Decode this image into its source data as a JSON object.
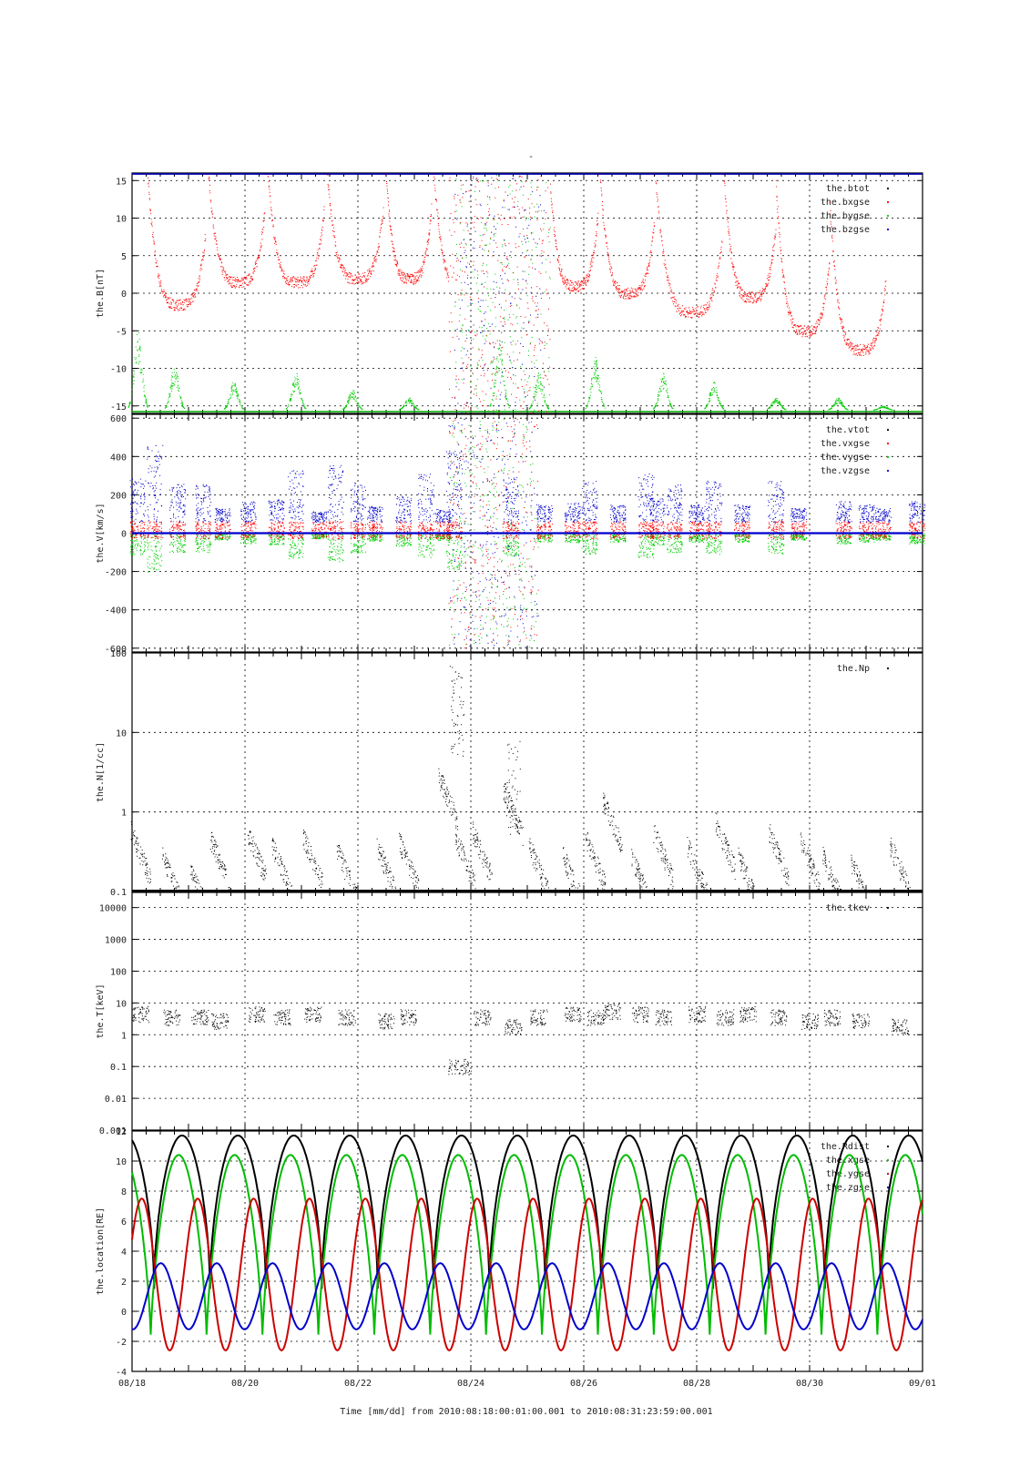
{
  "figure": {
    "top_mark": "-",
    "xlabel": "Time [mm/dd]  from 2010:08:18:00:01:00.001  to  2010:08:31:23:59:00.001"
  },
  "chart_data": [
    {
      "type": "scatter",
      "ylabel": "the.B[nT]",
      "ylim": [
        -16,
        16
      ],
      "yticks": [
        -15,
        -10,
        -5,
        0,
        5,
        10,
        15
      ],
      "yticklabels": [
        "-15",
        "-10",
        "-5",
        "0",
        "5",
        "10",
        "15"
      ],
      "x_range": [
        "08/18",
        "09/01"
      ],
      "grid": true,
      "legend": "top-right",
      "series": [
        {
          "name": "the.btot",
          "color": "#000000",
          "pattern": "constant",
          "y": [
            16
          ]
        },
        {
          "name": "the.bxgse",
          "color": "#ff0000",
          "pattern": "cusps",
          "cusp_days": [
            0.25,
            1.3,
            2.35,
            3.4,
            4.45,
            5.3,
            6.3,
            7.35,
            8.25,
            9.25,
            10.45,
            11.4,
            12.35,
            13.35
          ],
          "minima": [
            -1.5,
            1.5,
            1.5,
            2.0,
            2.0,
            1.0,
            0.5,
            1.0,
            0.0,
            -2.5,
            -0.5,
            -5.0,
            -7.5,
            1.0
          ]
        },
        {
          "name": "the.bygse",
          "color": "#00cc00",
          "pattern": "bumps",
          "base": -15.5,
          "centers": [
            0.1,
            0.75,
            1.8,
            2.9,
            3.9,
            4.9,
            6.5,
            7.2,
            8.2,
            9.4,
            10.3,
            11.4,
            12.5,
            13.3
          ],
          "peaks": [
            -6,
            -10,
            -12,
            -11,
            -13,
            -14,
            -7,
            -11,
            -9,
            -11,
            -12,
            -14,
            -14,
            -15
          ]
        },
        {
          "name": "the.bzgse",
          "color": "#0000cc",
          "pattern": "constant",
          "y": [
            16
          ]
        }
      ],
      "disturbed_interval_days": [
        5.6,
        7.4
      ]
    },
    {
      "type": "scatter",
      "ylabel": "the.V[km/s]",
      "ylim": [
        -620,
        620
      ],
      "yticks": [
        -600,
        -400,
        -200,
        0,
        200,
        400,
        600
      ],
      "yticklabels": [
        "-600",
        "-400",
        "-200",
        "0",
        "200",
        "400",
        "600"
      ],
      "x_range": [
        "08/18",
        "09/01"
      ],
      "grid": true,
      "legend": "top-right",
      "series": [
        {
          "name": "the.vtot",
          "color": "#000000"
        },
        {
          "name": "the.vxgse",
          "color": "#ff0000"
        },
        {
          "name": "the.vygse",
          "color": "#00cc00"
        },
        {
          "name": "the.vzgse",
          "color": "#0000cc"
        }
      ],
      "bursts_days": [
        0.1,
        0.4,
        0.8,
        1.25,
        1.6,
        2.05,
        2.55,
        2.9,
        3.3,
        3.6,
        4.0,
        4.3,
        4.8,
        5.2,
        5.5,
        5.7,
        6.7,
        7.3,
        7.8,
        8.1,
        8.6,
        9.1,
        9.3,
        9.6,
        10.0,
        10.3,
        10.8,
        11.4,
        11.8,
        12.6,
        13.0,
        13.3,
        13.9
      ],
      "burst_peaks": [
        250,
        450,
        220,
        220,
        80,
        120,
        130,
        300,
        60,
        330,
        230,
        90,
        150,
        280,
        80,
        420,
        260,
        100,
        110,
        240,
        100,
        280,
        140,
        220,
        100,
        240,
        100,
        240,
        80,
        120,
        100,
        80,
        120
      ],
      "disturbed_interval_days": [
        5.6,
        7.4
      ]
    },
    {
      "type": "scatter",
      "scale": "log",
      "ylabel": "the.N[1/cc]",
      "ylim": [
        0.1,
        100
      ],
      "yticks": [
        0.1,
        1,
        10,
        100
      ],
      "yticklabels": [
        "0.1",
        "1",
        "10",
        "100"
      ],
      "x_range": [
        "08/18",
        "09/01"
      ],
      "grid": true,
      "legend": "top-right",
      "series": [
        {
          "name": "the.Np",
          "color": "#000000"
        }
      ],
      "segments_days": [
        0.15,
        0.7,
        1.2,
        1.55,
        2.2,
        2.65,
        3.2,
        3.8,
        4.5,
        4.9,
        5.6,
        5.9,
        6.2,
        6.75,
        7.2,
        7.8,
        8.2,
        8.5,
        9.0,
        9.4,
        10.0,
        10.5,
        10.9,
        11.45,
        12.0,
        12.4,
        12.9,
        13.6
      ],
      "segment_values": [
        0.6,
        0.3,
        0.2,
        0.5,
        0.6,
        0.4,
        0.5,
        0.35,
        0.4,
        0.45,
        3.0,
        0.5,
        0.6,
        2.0,
        0.4,
        0.3,
        0.5,
        1.5,
        0.3,
        0.6,
        0.4,
        0.8,
        0.3,
        0.6,
        0.5,
        0.3,
        0.25,
        0.4
      ],
      "high_density": [
        {
          "day": 5.75,
          "value": 80
        },
        {
          "day": 6.75,
          "value": 8
        }
      ]
    },
    {
      "type": "scatter",
      "scale": "log",
      "ylabel": "the.T[keV]",
      "ylim": [
        0.001,
        30000
      ],
      "yticks": [
        0.001,
        0.01,
        0.1,
        1,
        10,
        100,
        1000,
        10000
      ],
      "yticklabels": [
        "0.001",
        "0.01",
        "0.1",
        "1",
        "10",
        "100",
        "1000",
        "10000"
      ],
      "x_range": [
        "08/18",
        "09/01"
      ],
      "grid": true,
      "legend": "top-right",
      "series": [
        {
          "name": "the.tkev",
          "color": "#000000"
        }
      ],
      "segments_days": [
        0.15,
        0.7,
        1.2,
        1.55,
        2.2,
        2.65,
        3.2,
        3.8,
        4.5,
        4.9,
        6.2,
        6.75,
        7.2,
        7.8,
        8.2,
        8.5,
        9.0,
        9.4,
        10.0,
        10.5,
        10.9,
        11.45,
        12.0,
        12.4,
        12.9,
        13.6
      ],
      "segment_values": [
        5,
        4,
        4,
        3,
        5,
        4,
        5,
        4,
        3,
        4,
        4,
        2,
        4,
        5,
        4,
        6,
        5,
        4,
        5,
        4,
        5,
        4,
        3,
        4,
        3,
        2
      ],
      "low_interval": {
        "day_start": 5.6,
        "day_end": 6.0,
        "value": 0.1
      }
    },
    {
      "type": "line",
      "ylabel": "the.location[RE]",
      "ylim": [
        -4,
        12
      ],
      "yticks": [
        -4,
        -2,
        0,
        2,
        4,
        6,
        8,
        10,
        12
      ],
      "yticklabels": [
        "-4",
        "-2",
        "0",
        "2",
        "4",
        "6",
        "8",
        "10",
        "12"
      ],
      "x_range": [
        "08/18",
        "09/01"
      ],
      "xticks": [
        "08/18",
        "08/20",
        "08/22",
        "08/24",
        "08/26",
        "08/28",
        "08/30",
        "09/01"
      ],
      "grid": true,
      "legend": "top-right",
      "orbit_period_days": 0.99,
      "series": [
        {
          "name": "the.Rdist",
          "color": "#000000",
          "min": 1.5,
          "max": 11.7
        },
        {
          "name": "the.xgse",
          "color": "#00bb00",
          "min": -1.7,
          "max": 10.4
        },
        {
          "name": "the.ygse",
          "color": "#cc0000",
          "min": -2.6,
          "max": 7.5
        },
        {
          "name": "the.zgse",
          "color": "#0000cc",
          "min": -1.2,
          "max": 3.2
        }
      ]
    }
  ]
}
